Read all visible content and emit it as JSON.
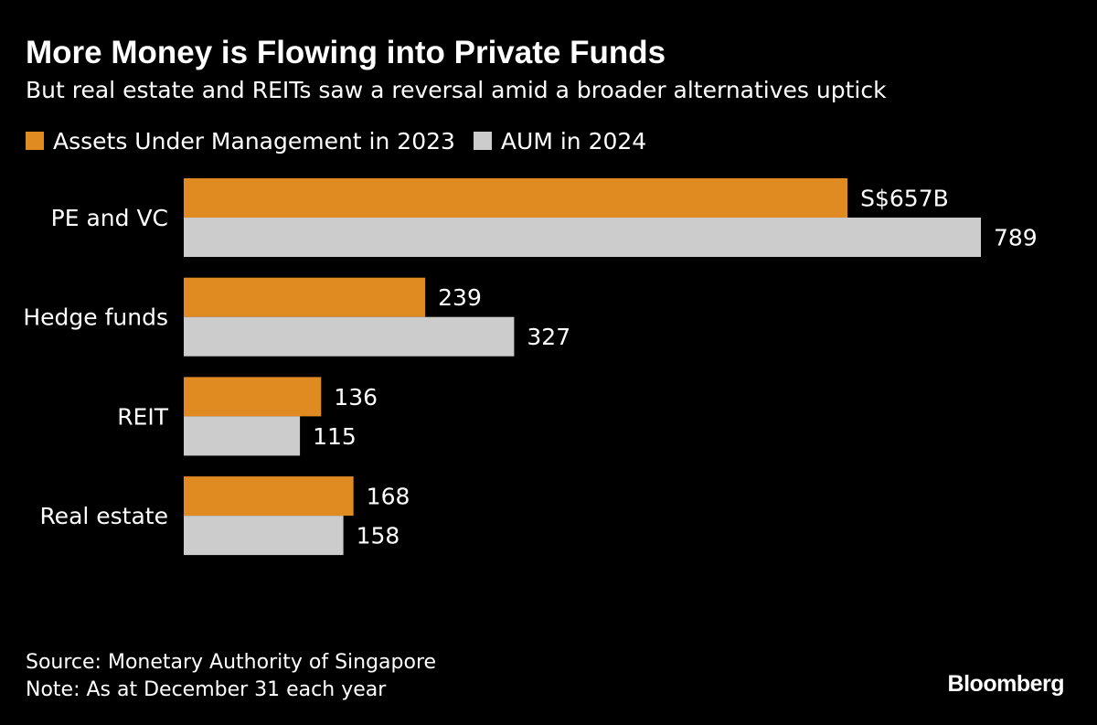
{
  "header": {
    "title": "More Money is Flowing into Private Funds",
    "subtitle": "But real estate and REITs saw a reversal amid a broader alternatives uptick"
  },
  "legend": {
    "items": [
      {
        "label": "Assets Under Management in 2023",
        "color": "#E08A22"
      },
      {
        "label": "AUM in 2024",
        "color": "#CCCCCC"
      }
    ]
  },
  "chart_data": {
    "type": "bar",
    "orientation": "horizontal",
    "title": "More Money is Flowing into Private Funds",
    "subtitle": "But real estate and REITs saw a reversal amid a broader alternatives uptick",
    "categories": [
      "PE and VC",
      "Hedge funds",
      "REIT",
      "Real estate"
    ],
    "series": [
      {
        "name": "Assets Under Management in 2023",
        "color": "#E08A22",
        "values": [
          657,
          239,
          136,
          168
        ],
        "labels": [
          "S$657B",
          "239",
          "136",
          "168"
        ]
      },
      {
        "name": "AUM in 2024",
        "color": "#CCCCCC",
        "values": [
          789,
          327,
          115,
          158
        ],
        "labels": [
          "789",
          "327",
          "115",
          "158"
        ]
      }
    ],
    "xlabel": "",
    "ylabel": "",
    "xlim": [
      0,
      789
    ],
    "unit": "S$ billion",
    "grid": false,
    "legend_position": "top-left"
  },
  "footer": {
    "source": "Source: Monetary Authority of Singapore",
    "note": "Note: As at December 31 each year",
    "brand": "Bloomberg"
  }
}
